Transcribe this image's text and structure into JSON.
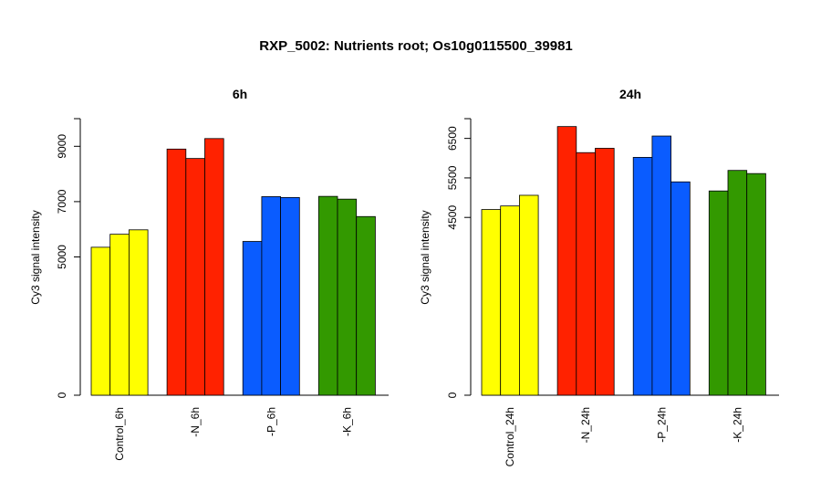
{
  "figure": {
    "title": "RXP_5002: Nutrients root; Os10g0115500_39981"
  },
  "chart_data": [
    {
      "type": "bar",
      "title": "6h",
      "ylabel": "Cy3 signal intensity",
      "ylim": [
        0,
        10000
      ],
      "yticks": [
        0,
        5000,
        7000,
        9000
      ],
      "categories": [
        "Control_6h",
        "-N_6h",
        "-P_6h",
        "-K_6h"
      ],
      "colors": [
        "#ffff00",
        "#ff2200",
        "#0a5cff",
        "#339900"
      ],
      "values": [
        [
          5350,
          5820,
          5980
        ],
        [
          8900,
          8560,
          9280
        ],
        [
          5560,
          7180,
          7150
        ],
        [
          7190,
          7090,
          6460
        ]
      ]
    },
    {
      "type": "bar",
      "title": "24h",
      "ylabel": "Cy3 signal intensity",
      "ylim": [
        0,
        7000
      ],
      "yticks": [
        0,
        4500,
        5500,
        6500
      ],
      "categories": [
        "Control_24h",
        "-N_24h",
        "-P_24h",
        "-K_24h"
      ],
      "colors": [
        "#ffff00",
        "#ff2200",
        "#0a5cff",
        "#339900"
      ],
      "values": [
        [
          4700,
          4790,
          5060
        ],
        [
          6800,
          6140,
          6250
        ],
        [
          6020,
          6560,
          5400
        ],
        [
          5170,
          5690,
          5610
        ]
      ]
    }
  ]
}
